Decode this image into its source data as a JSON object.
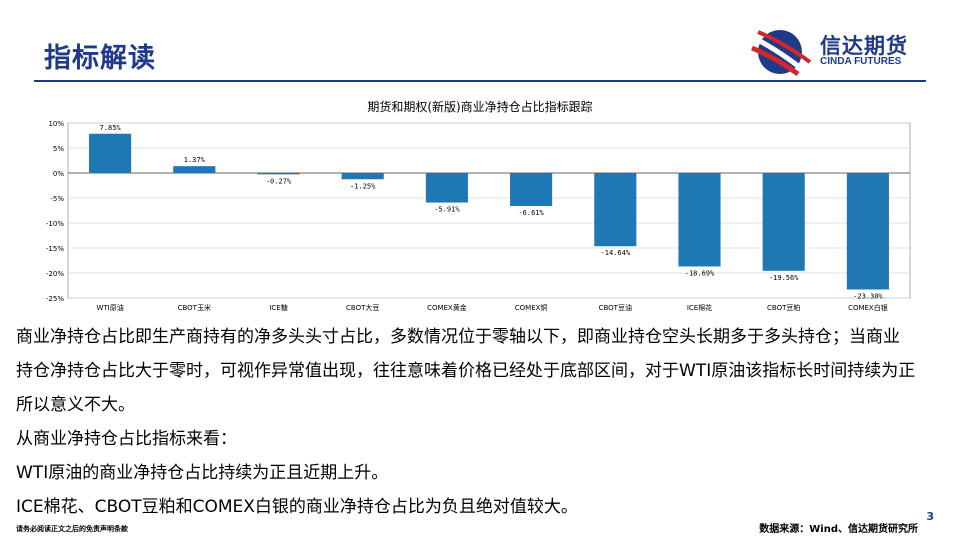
{
  "slide": {
    "title": "指标解读",
    "logo": {
      "cn": "信达期货",
      "en": "CINDA FUTURES"
    },
    "page_number": "3"
  },
  "chart_data": {
    "type": "bar",
    "title": "期货和期权(新版)商业净持仓占比指标跟踪",
    "categories": [
      "WTI原油",
      "CBOT玉米",
      "ICE糖",
      "CBOT大豆",
      "COMEX黄金",
      "COMEX铜",
      "CBOT豆油",
      "ICE棉花",
      "CBOT豆粕",
      "COMEX白银"
    ],
    "values": [
      7.85,
      1.37,
      -0.27,
      -1.25,
      -5.91,
      -6.61,
      -14.64,
      -18.69,
      -19.56,
      -23.3
    ],
    "value_labels": [
      "7.85%",
      "1.37%",
      "-0.27%",
      "-1.25%",
      "-5.91%",
      "-6.61%",
      "-14.64%",
      "-18.69%",
      "-19.56%",
      "-23.30%"
    ],
    "y_ticks": [
      10,
      5,
      0,
      -5,
      -10,
      -15,
      -20,
      -25
    ],
    "y_tick_labels": [
      "10%",
      "5%",
      "0%",
      "-5%",
      "-10%",
      "-15%",
      "-20%",
      "-25%"
    ],
    "ylim": [
      -25,
      10
    ],
    "grid": true,
    "bar_color": "#1f77b4",
    "xlabel": "",
    "ylabel": ""
  },
  "body": {
    "paragraphs": [
      "商业净持仓占比即生产商持有的净多头头寸占比，多数情况位于零轴以下，即商业持仓空头长期多于多头持仓；当商业持仓净持仓占比大于零时，可视作异常值出现，往往意味着价格已经处于底部区间，对于WTI原油该指标长时间持续为正所以意义不大。",
      "从商业净持仓占比指标来看：",
      "WTI原油的商业净持仓占比持续为正且近期上升。",
      "ICE棉花、CBOT豆粕和COMEX白银的商业净持仓占比为负且绝对值较大。"
    ]
  },
  "footer": {
    "disclaimer": "请务必阅读正文之后的免责声明条款",
    "source": "数据来源：Wind、信达期货研究所"
  }
}
